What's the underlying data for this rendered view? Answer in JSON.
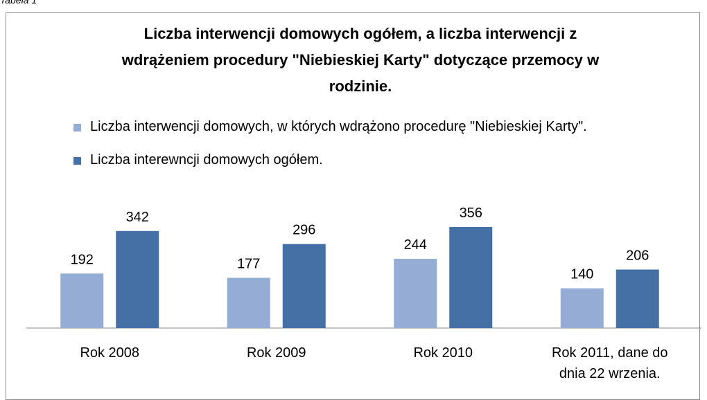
{
  "chart_data": {
    "type": "bar",
    "label": "Tabela 1",
    "title": "Liczba interwencji domowych ogółem, a liczba interwencji z wdrążeniem procedury  \"Niebieskiej Karty\" dotyczące przemocy w rodzinie.",
    "categories": [
      "Rok 2008",
      "Rok 2009",
      "Rok 2010",
      "Rok 2011, dane do dnia 22 wrzenia."
    ],
    "series": [
      {
        "name": "Liczba interwencji domowych, w których wdrążono procedurę \"Niebieskiej Karty\".",
        "color": "#95acd4",
        "values": [
          192,
          177,
          244,
          140
        ]
      },
      {
        "name": "Liczba interewncji domowych ogółem.",
        "color": "#4470a6",
        "values": [
          342,
          296,
          356,
          206
        ]
      }
    ],
    "legend": "top"
  }
}
